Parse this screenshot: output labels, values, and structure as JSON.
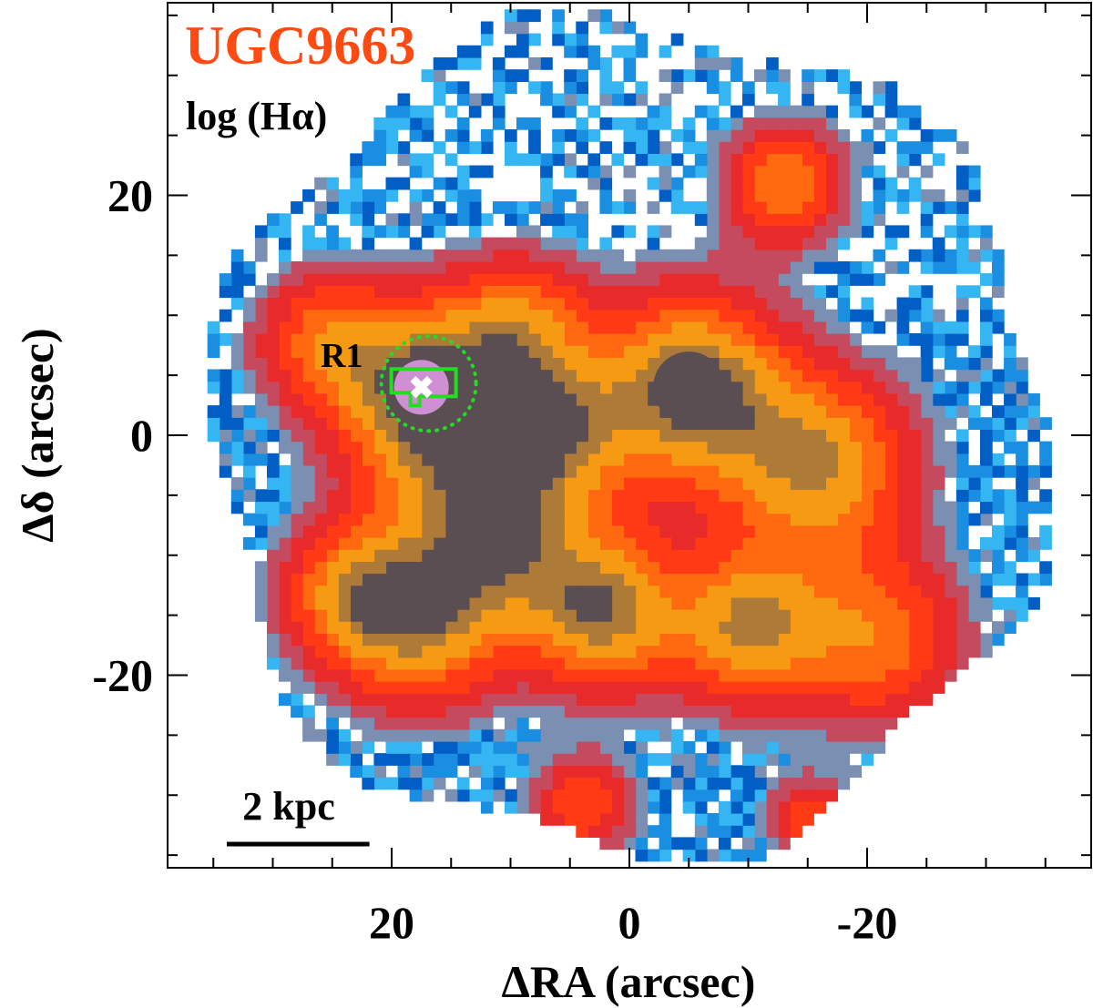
{
  "chart_data": {
    "type": "heatmap",
    "title": "UGC9663",
    "subtitle": "log (Hα)",
    "xlabel": "ΔRA (arcsec)",
    "ylabel": "Δδ (arcsec)",
    "xlim": [
      40,
      -40
    ],
    "ylim": [
      -36,
      36
    ],
    "x_reversed": true,
    "xticks": [
      {
        "value": 20,
        "label": "20"
      },
      {
        "value": 0,
        "label": "0"
      },
      {
        "value": -20,
        "label": "-20"
      }
    ],
    "yticks": [
      {
        "value": 20,
        "label": "20"
      },
      {
        "value": 0,
        "label": "0"
      },
      {
        "value": -20,
        "label": "-20"
      }
    ],
    "minor_tick_step": 5,
    "annotations": {
      "region_label": "R1",
      "region_center": [
        17.5,
        4
      ],
      "scale_bar_label": "2 kpc",
      "scale_bar_length_arcsec": 12
    },
    "emission_knots": [
      {
        "x": 17,
        "y": 3.5,
        "amp": 1.0,
        "sigma": 5.5
      },
      {
        "x": -5,
        "y": 4,
        "amp": 1.0,
        "sigma": 5.5
      },
      {
        "x": 11,
        "y": -7.5,
        "amp": 0.85,
        "sigma": 6
      },
      {
        "x": 6,
        "y": 1,
        "amp": 0.55,
        "sigma": 4
      },
      {
        "x": -16,
        "y": -2.5,
        "amp": 0.8,
        "sigma": 5.5
      },
      {
        "x": 18,
        "y": -16,
        "amp": 0.7,
        "sigma": 5
      },
      {
        "x": 2,
        "y": -15,
        "amp": 0.8,
        "sigma": 4.5
      },
      {
        "x": -10,
        "y": -16,
        "amp": 0.8,
        "sigma": 4.5
      },
      {
        "x": -21,
        "y": -17,
        "amp": 0.6,
        "sigma": 5
      },
      {
        "x": 24,
        "y": -13,
        "amp": 0.55,
        "sigma": 4
      },
      {
        "x": -13,
        "y": 21,
        "amp": 0.65,
        "sigma": 3.5
      },
      {
        "x": 9,
        "y": 9.5,
        "amp": 0.55,
        "sigma": 4
      },
      {
        "x": 4,
        "y": -31,
        "amp": 0.5,
        "sigma": 3
      },
      {
        "x": -15,
        "y": -32,
        "amp": 0.45,
        "sigma": 2.5
      },
      {
        "x": 26,
        "y": 8,
        "amp": 0.5,
        "sigma": 4
      }
    ],
    "colors": {
      "ring_cmap": [
        "#005ec4",
        "#1a8ee0",
        "#35b6f2",
        "#7a8fb2",
        "#c64a5e",
        "#e82a2a",
        "#ff3a14",
        "#ff6a10",
        "#f59a12",
        "#ad7a38",
        "#5a4e52",
        "#cf8fd3"
      ],
      "title": "#ff4a12",
      "region_contour": "#22dd22",
      "axes": "#000000"
    },
    "grid": false,
    "legend": "none"
  }
}
